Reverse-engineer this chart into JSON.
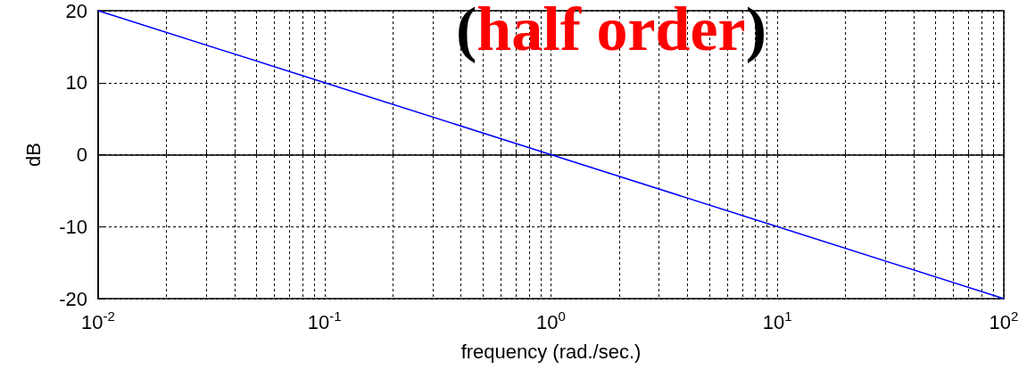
{
  "chart_data": {
    "type": "line",
    "title": "(half order)",
    "xlabel": "frequency (rad./sec.)",
    "ylabel": "dB",
    "x": [
      0.01,
      0.1,
      1,
      10,
      100
    ],
    "series": [
      {
        "color": "#0000ff",
        "values": [
          20,
          10,
          0,
          -10,
          -20
        ]
      }
    ],
    "log": "x",
    "xlim": [
      0.01,
      100
    ],
    "xticks": [
      {
        "value": 0.01,
        "label": "10$^{-2}$"
      },
      {
        "value": 0.02,
        "label": null
      },
      {
        "value": 0.03,
        "label": null
      },
      {
        "value": 0.04,
        "label": null
      },
      {
        "value": 0.05,
        "label": null
      },
      {
        "value": 0.06,
        "label": null
      },
      {
        "value": 0.07,
        "label": null
      },
      {
        "value": 0.08,
        "label": null
      },
      {
        "value": 0.09,
        "label": null
      },
      {
        "value": 0.1,
        "label": "10$^{-1}$"
      },
      {
        "value": 0.2,
        "label": null
      },
      {
        "value": 0.3,
        "label": null
      },
      {
        "value": 0.4,
        "label": null
      },
      {
        "value": 0.5,
        "label": null
      },
      {
        "value": 0.6,
        "label": null
      },
      {
        "value": 0.7,
        "label": null
      },
      {
        "value": 0.8,
        "label": null
      },
      {
        "value": 0.9,
        "label": null
      },
      {
        "value": 1,
        "label": "10$^{0}$"
      },
      {
        "value": 2,
        "label": null
      },
      {
        "value": 3,
        "label": null
      },
      {
        "value": 4,
        "label": null
      },
      {
        "value": 5,
        "label": null
      },
      {
        "value": 6,
        "label": null
      },
      {
        "value": 7,
        "label": null
      },
      {
        "value": 8,
        "label": null
      },
      {
        "value": 9,
        "label": null
      },
      {
        "value": 10,
        "label": "10$^{1}$"
      },
      {
        "value": 20,
        "label": null
      },
      {
        "value": 30,
        "label": null
      },
      {
        "value": 40,
        "label": null
      },
      {
        "value": 50,
        "label": null
      },
      {
        "value": 60,
        "label": null
      },
      {
        "value": 70,
        "label": null
      },
      {
        "value": 80,
        "label": null
      },
      {
        "value": 90,
        "label": null
      },
      {
        "value": 100,
        "label": "10$^{2}$"
      }
    ],
    "ylim": [
      -20,
      20
    ],
    "yticks": [
      -20,
      -10,
      0,
      10,
      20
    ],
    "grid": true,
    "marker": "none",
    "line_style": "solid"
  }
}
